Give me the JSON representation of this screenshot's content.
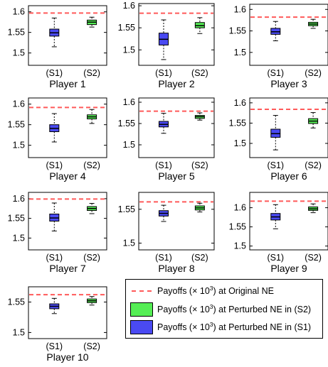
{
  "colors": {
    "nash_line": "#ff5a5a",
    "s2_box": "#55ee55",
    "s1_box": "#4a4af2",
    "axis": "#000000"
  },
  "legend": {
    "original_prefix": "Payoffs (",
    "original_mid": "× 10",
    "original_exp": "3",
    "original_suffix": ") at Original NE",
    "s2_prefix": "Payoffs (",
    "s2_mid": "× 10",
    "s2_exp": "3",
    "s2_suffix": ") at Perturbed NE in (S2)",
    "s1_prefix": "Payoffs (",
    "s1_mid": "× 10",
    "s1_exp": "3",
    "s1_suffix": ") at Perturbed NE in (S1)"
  },
  "chart_data": [
    {
      "type": "box",
      "title": "Player 1",
      "categories": [
        "(S1)",
        "(S2)"
      ],
      "ylim": [
        1.47,
        1.615
      ],
      "yticks": [
        "1.5",
        "1.55",
        "1.6"
      ],
      "nash_line": 1.597,
      "boxes": [
        {
          "min": 1.515,
          "q1": 1.541,
          "median": 1.549,
          "q3": 1.558,
          "max": 1.585
        },
        {
          "min": 1.563,
          "q1": 1.569,
          "median": 1.575,
          "q3": 1.58,
          "max": 1.587
        }
      ]
    },
    {
      "type": "box",
      "title": "Player 2",
      "categories": [
        "(S1)",
        "(S2)"
      ],
      "ylim": [
        1.465,
        1.605
      ],
      "yticks": [
        "1.5",
        "1.55",
        "1.6"
      ],
      "nash_line": 1.583,
      "boxes": [
        {
          "min": 1.478,
          "q1": 1.511,
          "median": 1.524,
          "q3": 1.538,
          "max": 1.568
        },
        {
          "min": 1.537,
          "q1": 1.55,
          "median": 1.555,
          "q3": 1.562,
          "max": 1.573
        }
      ]
    },
    {
      "type": "box",
      "title": "Player 3",
      "categories": [
        "(S1)",
        "(S2)"
      ],
      "ylim": [
        1.47,
        1.612
      ],
      "yticks": [
        "1.5",
        "1.55",
        "1.6"
      ],
      "nash_line": 1.582,
      "boxes": [
        {
          "min": 1.527,
          "q1": 1.542,
          "median": 1.548,
          "q3": 1.556,
          "max": 1.572
        },
        {
          "min": 1.556,
          "q1": 1.562,
          "median": 1.566,
          "q3": 1.57,
          "max": 1.577
        }
      ]
    },
    {
      "type": "box",
      "title": "Player 4",
      "categories": [
        "(S1)",
        "(S2)"
      ],
      "ylim": [
        1.47,
        1.615
      ],
      "yticks": [
        "1.5",
        "1.55",
        "1.6"
      ],
      "nash_line": 1.592,
      "boxes": [
        {
          "min": 1.508,
          "q1": 1.533,
          "median": 1.541,
          "q3": 1.55,
          "max": 1.577
        },
        {
          "min": 1.553,
          "q1": 1.564,
          "median": 1.569,
          "q3": 1.574,
          "max": 1.587
        }
      ]
    },
    {
      "type": "box",
      "title": "Player 5",
      "categories": [
        "(S1)",
        "(S2)"
      ],
      "ylim": [
        1.47,
        1.61
      ],
      "yticks": [
        "1.5",
        "1.55",
        "1.6"
      ],
      "nash_line": 1.579,
      "boxes": [
        {
          "min": 1.527,
          "q1": 1.542,
          "median": 1.548,
          "q3": 1.555,
          "max": 1.574
        },
        {
          "min": 1.558,
          "q1": 1.562,
          "median": 1.566,
          "q3": 1.569,
          "max": 1.575
        }
      ]
    },
    {
      "type": "box",
      "title": "Player 6",
      "categories": [
        "(S1)",
        "(S2)"
      ],
      "ylim": [
        1.465,
        1.612
      ],
      "yticks": [
        "1.5",
        "1.55",
        "1.6"
      ],
      "nash_line": 1.584,
      "boxes": [
        {
          "min": 1.484,
          "q1": 1.515,
          "median": 1.524,
          "q3": 1.535,
          "max": 1.569
        },
        {
          "min": 1.538,
          "q1": 1.549,
          "median": 1.555,
          "q3": 1.561,
          "max": 1.576
        }
      ]
    },
    {
      "type": "box",
      "title": "Player 7",
      "categories": [
        "(S1)",
        "(S2)"
      ],
      "ylim": [
        1.47,
        1.616
      ],
      "yticks": [
        "1.5",
        "1.55",
        "1.6"
      ],
      "nash_line": 1.599,
      "boxes": [
        {
          "min": 1.518,
          "q1": 1.543,
          "median": 1.551,
          "q3": 1.561,
          "max": 1.589
        },
        {
          "min": 1.562,
          "q1": 1.57,
          "median": 1.575,
          "q3": 1.58,
          "max": 1.588
        }
      ]
    },
    {
      "type": "box",
      "title": "Player 8",
      "categories": [
        "(S1)",
        "(S2)"
      ],
      "ylim": [
        1.49,
        1.575
      ],
      "yticks": [
        "1.5",
        "1.55"
      ],
      "nash_line": 1.561,
      "boxes": [
        {
          "min": 1.532,
          "q1": 1.54,
          "median": 1.544,
          "q3": 1.548,
          "max": 1.556
        },
        {
          "min": 1.546,
          "q1": 1.549,
          "median": 1.552,
          "q3": 1.555,
          "max": 1.559
        }
      ]
    },
    {
      "type": "box",
      "title": "Player 9",
      "categories": [
        "(S1)",
        "(S2)"
      ],
      "ylim": [
        1.49,
        1.64
      ],
      "yticks": [
        "1.5",
        "1.55",
        "1.6"
      ],
      "nash_line": 1.617,
      "boxes": [
        {
          "min": 1.545,
          "q1": 1.568,
          "median": 1.576,
          "q3": 1.585,
          "max": 1.608
        },
        {
          "min": 1.587,
          "q1": 1.593,
          "median": 1.597,
          "q3": 1.602,
          "max": 1.61
        }
      ]
    },
    {
      "type": "box",
      "title": "Player 10",
      "categories": [
        "(S1)",
        "(S2)"
      ],
      "ylim": [
        1.49,
        1.575
      ],
      "yticks": [
        "1.5",
        "1.55"
      ],
      "nash_line": 1.562,
      "boxes": [
        {
          "min": 1.531,
          "q1": 1.539,
          "median": 1.543,
          "q3": 1.547,
          "max": 1.556
        },
        {
          "min": 1.545,
          "q1": 1.549,
          "median": 1.552,
          "q3": 1.555,
          "max": 1.559
        }
      ]
    }
  ]
}
